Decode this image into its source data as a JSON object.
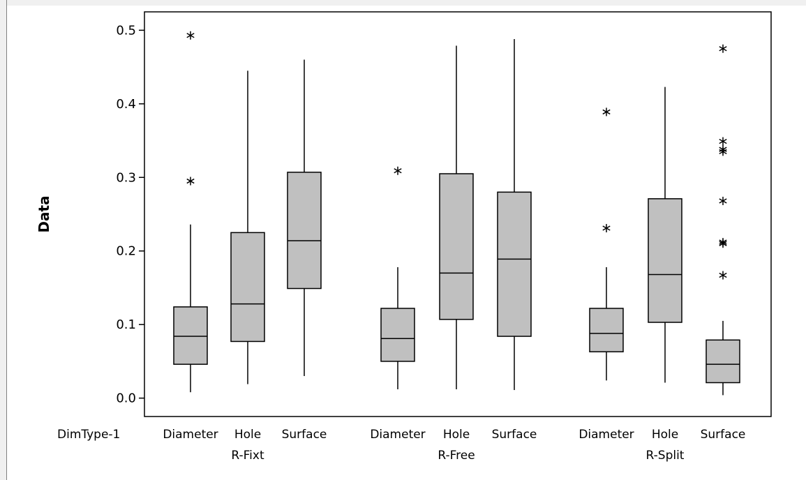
{
  "chart_data": {
    "type": "boxplot",
    "ylabel": "Data",
    "ylim": [
      -0.025,
      0.525
    ],
    "yticks": [
      0.0,
      0.1,
      0.2,
      0.3,
      0.4,
      0.5
    ],
    "ytick_labels": [
      "0.0",
      "0.1",
      "0.2",
      "0.3",
      "0.4",
      "0.5"
    ],
    "inner_factor_label": "DimType-1",
    "groups": [
      {
        "name": "R-Fixt",
        "boxes": [
          {
            "category": "Diameter",
            "whisker_low": 0.008,
            "q1": 0.046,
            "median": 0.084,
            "q3": 0.124,
            "whisker_high": 0.236,
            "outliers": [
              0.295,
              0.493
            ]
          },
          {
            "category": "Hole",
            "whisker_low": 0.019,
            "q1": 0.077,
            "median": 0.128,
            "q3": 0.225,
            "whisker_high": 0.445,
            "outliers": []
          },
          {
            "category": "Surface",
            "whisker_low": 0.03,
            "q1": 0.149,
            "median": 0.214,
            "q3": 0.307,
            "whisker_high": 0.46,
            "outliers": []
          }
        ]
      },
      {
        "name": "R-Free",
        "boxes": [
          {
            "category": "Diameter",
            "whisker_low": 0.012,
            "q1": 0.05,
            "median": 0.081,
            "q3": 0.122,
            "whisker_high": 0.178,
            "outliers": [
              0.309
            ]
          },
          {
            "category": "Hole",
            "whisker_low": 0.012,
            "q1": 0.107,
            "median": 0.17,
            "q3": 0.305,
            "whisker_high": 0.479,
            "outliers": []
          },
          {
            "category": "Surface",
            "whisker_low": 0.011,
            "q1": 0.084,
            "median": 0.189,
            "q3": 0.28,
            "whisker_high": 0.488,
            "outliers": []
          }
        ]
      },
      {
        "name": "R-Split",
        "boxes": [
          {
            "category": "Diameter",
            "whisker_low": 0.024,
            "q1": 0.063,
            "median": 0.088,
            "q3": 0.122,
            "whisker_high": 0.178,
            "outliers": [
              0.231,
              0.389
            ]
          },
          {
            "category": "Hole",
            "whisker_low": 0.021,
            "q1": 0.103,
            "median": 0.168,
            "q3": 0.271,
            "whisker_high": 0.423,
            "outliers": []
          },
          {
            "category": "Surface",
            "whisker_low": 0.004,
            "q1": 0.021,
            "median": 0.046,
            "q3": 0.079,
            "whisker_high": 0.105,
            "outliers": [
              0.167,
              0.21,
              0.212,
              0.268,
              0.335,
              0.338,
              0.349,
              0.475
            ]
          }
        ]
      }
    ],
    "colors": {
      "box_fill": "#c0c0c0",
      "stroke": "#000000",
      "plot_background": "#ffffff",
      "frame": "#000000"
    }
  }
}
